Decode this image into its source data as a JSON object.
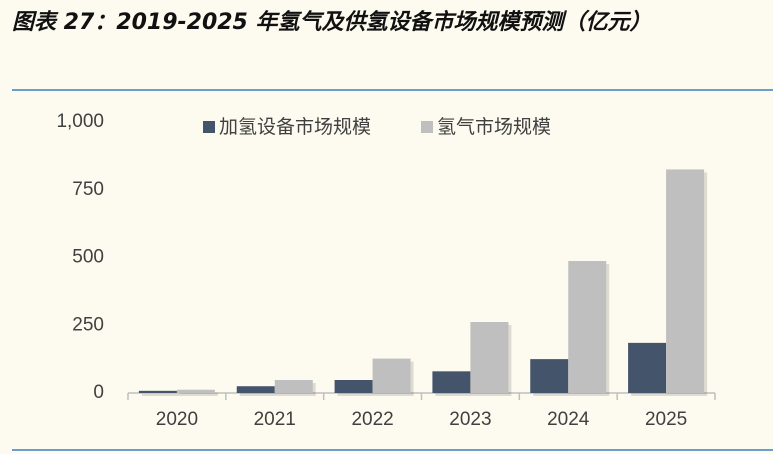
{
  "chart_data": {
    "type": "bar",
    "title": "图表 27：2019-2025 年氢气及供氢设备市场规模预测（亿元）",
    "categories": [
      "2020",
      "2021",
      "2022",
      "2023",
      "2024",
      "2025"
    ],
    "series": [
      {
        "name": "加氢设备市场规模",
        "color": "#44546a",
        "values": [
          8,
          25,
          48,
          80,
          125,
          185
        ]
      },
      {
        "name": "氢气市场规模",
        "color": "#bfbfbf",
        "values": [
          12,
          48,
          127,
          262,
          487,
          825
        ]
      }
    ],
    "ylim": [
      0,
      1000
    ],
    "yticks": [
      0,
      250,
      500,
      750,
      {
        "value": 1000,
        "label": "1,000"
      }
    ],
    "grid": false,
    "legend": "top"
  }
}
